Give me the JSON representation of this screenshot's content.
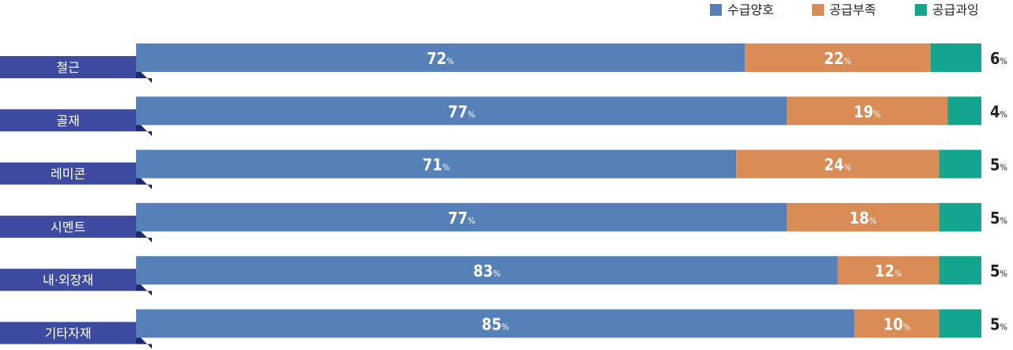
{
  "chart_data": {
    "type": "bar",
    "orientation": "horizontal",
    "stacked": true,
    "categories": [
      "철근",
      "골재",
      "레미콘",
      "시멘트",
      "내·외장재",
      "기타자재"
    ],
    "series": [
      {
        "name": "수급양호",
        "values": [
          72,
          77,
          71,
          77,
          83,
          85
        ],
        "color": "#5580b8"
      },
      {
        "name": "공급부족",
        "values": [
          22,
          19,
          24,
          18,
          12,
          10
        ],
        "color": "#d98c55"
      },
      {
        "name": "공급과잉",
        "values": [
          6,
          4,
          5,
          5,
          5,
          5
        ],
        "color": "#13a58e"
      }
    ],
    "unit": "%",
    "legend_position": "top-right",
    "grid": false,
    "label_color": "#3c4b9f"
  }
}
